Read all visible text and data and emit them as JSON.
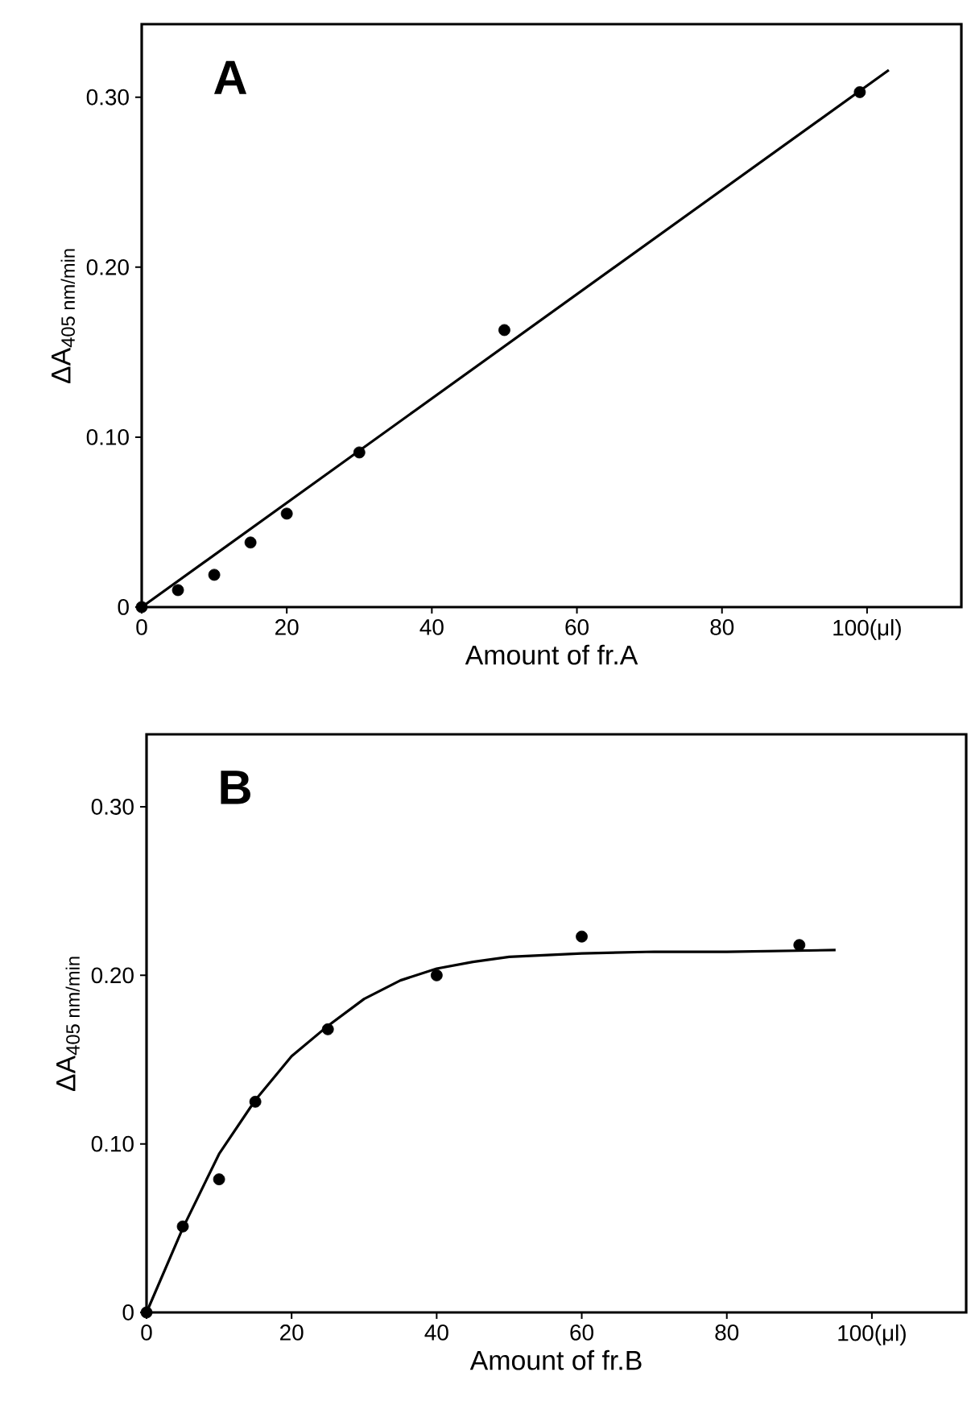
{
  "chart_data": [
    {
      "type": "scatter",
      "title": "A",
      "xlabel": "Amount of fr.A",
      "ylabel": "ΔA$_{405 nm/min}$",
      "xlim": [
        0,
        113
      ],
      "ylim": [
        0,
        0.343
      ],
      "xticks": [
        0,
        20,
        40,
        60,
        80,
        {
          "value": 100,
          "label": "100(μl)"
        }
      ],
      "yticks": [
        0,
        {
          "value": 0.1,
          "label": "0.10"
        },
        {
          "value": 0.2,
          "label": "0.20"
        },
        {
          "value": 0.3,
          "label": "0.30"
        }
      ],
      "series": [
        {
          "marker": "circle",
          "color": "#000000",
          "x": [
            0,
            5,
            10,
            15,
            20,
            30,
            50,
            99
          ],
          "values": [
            0,
            0.01,
            0.019,
            0.038,
            0.055,
            0.091,
            0.163,
            0.303
          ]
        },
        {
          "type": "line",
          "marker": "none",
          "color": "#000000",
          "x": [
            0,
            103
          ],
          "values": [
            0,
            0.316
          ]
        }
      ]
    },
    {
      "type": "scatter",
      "title": "B",
      "xlabel": "Amount of fr.B",
      "ylabel": "ΔA$_{405 nm/min}$",
      "xlim": [
        0,
        113
      ],
      "ylim": [
        0,
        0.343
      ],
      "xticks": [
        0,
        20,
        40,
        60,
        80,
        {
          "value": 100,
          "label": "100(μl)"
        }
      ],
      "yticks": [
        0,
        {
          "value": 0.1,
          "label": "0.10"
        },
        {
          "value": 0.2,
          "label": "0.20"
        },
        {
          "value": 0.3,
          "label": "0.30"
        }
      ],
      "series": [
        {
          "marker": "circle",
          "color": "#000000",
          "x": [
            0,
            5,
            10,
            15,
            25,
            40,
            60,
            90
          ],
          "values": [
            0,
            0.051,
            0.079,
            0.125,
            0.168,
            0.2,
            0.223,
            0.218
          ]
        },
        {
          "type": "line",
          "marker": "none",
          "color": "#000000",
          "x": [
            0,
            5,
            10,
            15,
            20,
            25,
            30,
            35,
            40,
            45,
            50,
            60,
            70,
            80,
            95
          ],
          "values": [
            0,
            0.05,
            0.094,
            0.126,
            0.152,
            0.17,
            0.186,
            0.197,
            0.204,
            0.208,
            0.211,
            0.213,
            0.214,
            0.214,
            0.215
          ]
        }
      ]
    }
  ]
}
